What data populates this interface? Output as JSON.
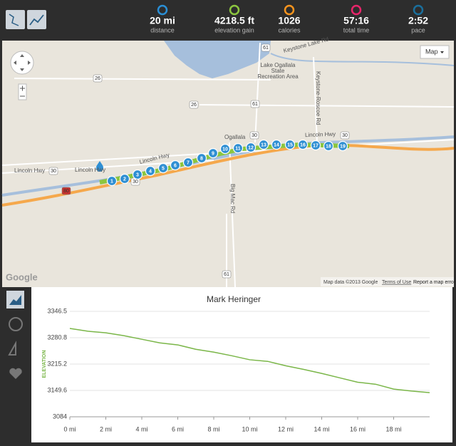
{
  "stats": [
    {
      "value": "20 mi",
      "label": "distance"
    },
    {
      "value": "4218.5 ft",
      "label": "elevation gain"
    },
    {
      "value": "1026",
      "label": "calories"
    },
    {
      "value": "57:16",
      "label": "total time"
    },
    {
      "value": "2:52",
      "label": "pace"
    }
  ],
  "map": {
    "map_type": "Map",
    "logo": "Google",
    "attribution": "Map data ©2013 Google",
    "terms": "Terms of Use",
    "report": "Report a map error",
    "labels": [
      "Lincoln Hwy",
      "Lincoln Hwy",
      "Lincoln Hwy",
      "Lincoln Hwy",
      "Ogallala",
      "Big Mac Rd",
      "Keystone-Roscoe Rd",
      "Keystone Lake Rd",
      "Lake Ogallala",
      "State",
      "Recreation Area"
    ],
    "shields": [
      "26",
      "26",
      "61",
      "61",
      "30",
      "30",
      "30",
      "30",
      "80",
      "61"
    ],
    "markers": [
      "1",
      "2",
      "3",
      "4",
      "5",
      "6",
      "7",
      "8",
      "9",
      "10",
      "11",
      "12",
      "13",
      "14",
      "15",
      "16",
      "17",
      "18",
      "19"
    ]
  },
  "chart_data": {
    "type": "line",
    "title": "Mark Heringer",
    "y_label": "ELEVATION",
    "color": "#7ab648",
    "x": [
      0,
      1,
      2,
      3,
      4,
      5,
      6,
      7,
      8,
      9,
      10,
      11,
      12,
      13,
      14,
      15,
      16,
      17,
      18,
      19,
      20
    ],
    "values": [
      3304,
      3297,
      3293,
      3286,
      3277,
      3268,
      3263,
      3252,
      3245,
      3236,
      3226,
      3222,
      3211,
      3202,
      3192,
      3181,
      3170,
      3165,
      3153,
      3148,
      3144
    ],
    "xlim": [
      0,
      20
    ],
    "ylim": [
      3084,
      3346.5
    ],
    "xticks": [
      {
        "value": 0,
        "label": "0 mi"
      },
      {
        "value": 2,
        "label": "2 mi"
      },
      {
        "value": 4,
        "label": "4 mi"
      },
      {
        "value": 6,
        "label": "6 mi"
      },
      {
        "value": 8,
        "label": "8 mi"
      },
      {
        "value": 10,
        "label": "10 mi"
      },
      {
        "value": 12,
        "label": "12 mi"
      },
      {
        "value": 14,
        "label": "14 mi"
      },
      {
        "value": 16,
        "label": "16 mi"
      },
      {
        "value": 18,
        "label": "18 mi"
      }
    ],
    "yticks": [
      3084,
      3149.6,
      3215.2,
      3280.8,
      3346.5
    ],
    "grid": true
  }
}
